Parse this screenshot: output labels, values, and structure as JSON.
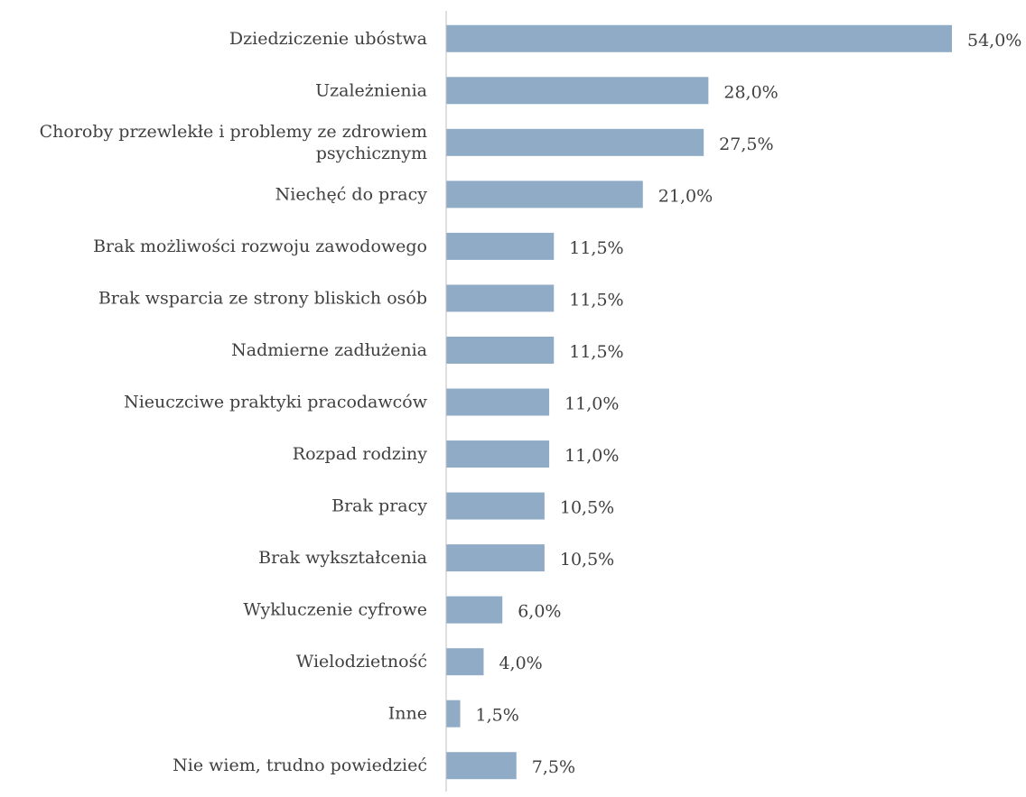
{
  "chart_data": {
    "type": "bar",
    "orientation": "horizontal",
    "title": "",
    "xlabel": "",
    "ylabel": "",
    "xlim": [
      0,
      54
    ],
    "grid": false,
    "legend": "none",
    "colors": {
      "bar": "#90abc5",
      "axis": "#bfbfbf",
      "text": "#404040"
    },
    "categories": [
      "Dziedziczenie ubóstwa",
      "Uzależnienia",
      "Choroby przewlekłe i problemy ze zdrowiem psychicznym",
      "Niechęć do pracy",
      "Brak możliwości rozwoju zawodowego",
      "Brak wsparcia ze strony bliskich osób",
      "Nadmierne zadłużenia",
      "Nieuczciwe praktyki pracodawców",
      "Rozpad rodziny",
      "Brak pracy",
      "Brak wykształcenia",
      "Wykluczenie cyfrowe",
      "Wielodzietność",
      "Inne",
      "Nie wiem, trudno powiedzieć"
    ],
    "values": [
      54.0,
      28.0,
      27.5,
      21.0,
      11.5,
      11.5,
      11.5,
      11.0,
      11.0,
      10.5,
      10.5,
      6.0,
      4.0,
      1.5,
      7.5
    ],
    "data_labels": [
      "54,0%",
      "28,0%",
      "27,5%",
      "21,0%",
      "11,5%",
      "11,5%",
      "11,5%",
      "11,0%",
      "11,0%",
      "10,5%",
      "10,5%",
      "6,0%",
      "4,0%",
      "1,5%",
      "7,5%"
    ]
  }
}
